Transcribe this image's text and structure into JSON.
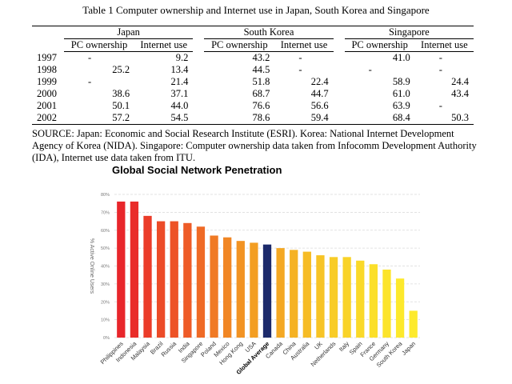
{
  "table": {
    "title": "Table 1  Computer ownership and Internet use in Japan, South Korea and Singapore",
    "groups": [
      "Japan",
      "South Korea",
      "Singapore"
    ],
    "subheaders": [
      "PC ownership",
      "Internet use",
      "PC ownership",
      "Internet use",
      "PC ownership",
      "Internet use"
    ],
    "rows": [
      {
        "year": "1997",
        "cells": [
          "-",
          "9.2",
          "43.2",
          "-",
          "41.0",
          "-"
        ]
      },
      {
        "year": "1998",
        "cells": [
          "25.2",
          "13.4",
          "44.5",
          "-",
          "-",
          "-"
        ]
      },
      {
        "year": "1999",
        "cells": [
          "-",
          "21.4",
          "51.8",
          "22.4",
          "58.9",
          "24.4"
        ]
      },
      {
        "year": "2000",
        "cells": [
          "38.6",
          "37.1",
          "68.7",
          "44.7",
          "61.0",
          "43.4"
        ]
      },
      {
        "year": "2001",
        "cells": [
          "50.1",
          "44.0",
          "76.6",
          "56.6",
          "63.9",
          "-"
        ]
      },
      {
        "year": "2002",
        "cells": [
          "57.2",
          "54.5",
          "78.6",
          "59.4",
          "68.4",
          "50.3"
        ]
      }
    ],
    "source": "SOURCE:  Japan:  Economic and Social Research Institute (ESRI).  Korea:  National Internet Development Agency of Korea (NIDA).  Singapore:  Computer ownership data taken from Infocomm Development Authority (IDA), Internet use data taken from ITU."
  },
  "chart_data": {
    "type": "bar",
    "title": "Global Social Network Penetration",
    "xlabel": "",
    "ylabel": "% Active Online Users",
    "ylim": [
      0,
      80
    ],
    "yticks": [
      0,
      10,
      20,
      30,
      40,
      50,
      60,
      70,
      80
    ],
    "ytick_labels": [
      "0%",
      "10%",
      "20%",
      "30%",
      "40%",
      "50%",
      "60%",
      "70%",
      "80%"
    ],
    "grid": "horizontal dashed",
    "categories": [
      "Philippines",
      "Indonesia",
      "Malaysia",
      "Brazil",
      "Russia",
      "India",
      "Singapore",
      "Poland",
      "Mexico",
      "Hong Kong",
      "USA",
      "Global Average",
      "Canada",
      "China",
      "Australia",
      "UK",
      "Netherlands",
      "Italy",
      "Spain",
      "France",
      "Germany",
      "South Korea",
      "Japan"
    ],
    "values": [
      76,
      76,
      68,
      65,
      65,
      64,
      62,
      57,
      56,
      54,
      53,
      52,
      50,
      49,
      48,
      46,
      45,
      45,
      43,
      41,
      38,
      33,
      15
    ],
    "highlight_category": "Global Average",
    "colors": [
      "#e8262b",
      "#e92d2a",
      "#eb3c29",
      "#ec4b28",
      "#ed5327",
      "#ee5b27",
      "#ef6a26",
      "#f07a25",
      "#f18624",
      "#f29323",
      "#f39e22",
      "#1c2a6b",
      "#f4a823",
      "#f5b224",
      "#f6bc25",
      "#f7c426",
      "#f8cc27",
      "#f9d328",
      "#fad929",
      "#fbdf2a",
      "#fce42b",
      "#fde92c",
      "#fdea2d"
    ]
  }
}
